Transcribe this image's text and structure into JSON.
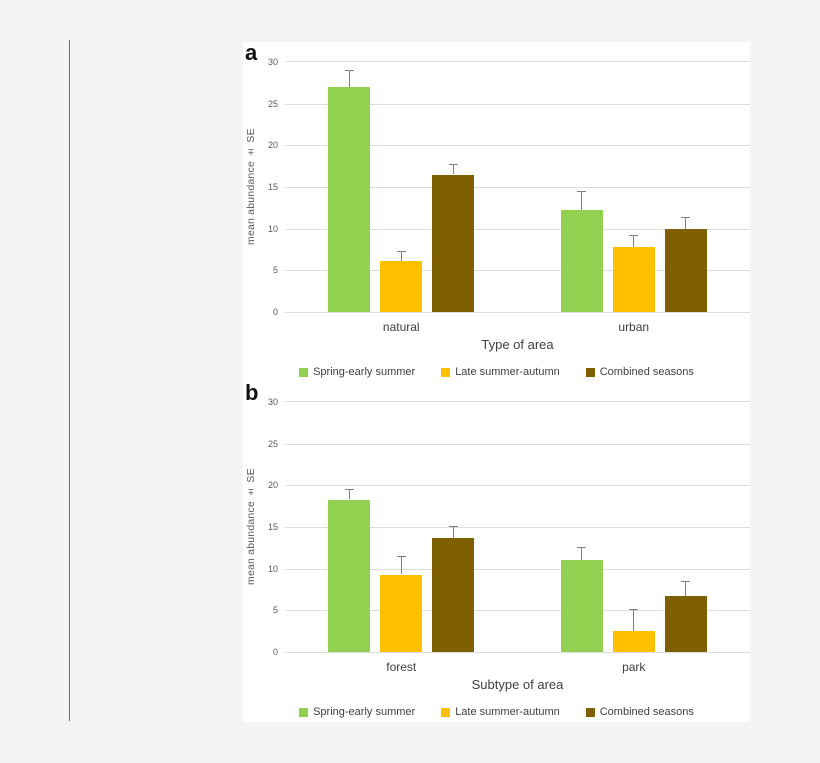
{
  "colors": {
    "page_bg": "#f4f4f4",
    "panel_bg": "#ffffff",
    "divider": "#6e6e6e",
    "gridline": "#dcdcdc",
    "tick_text": "#595959",
    "label_text": "#404040",
    "error_bar": "#808080",
    "panel_label": "#111111"
  },
  "chart_data": [
    {
      "type": "bar",
      "panel_label": "a",
      "xlabel": "Type of area",
      "ylabel": "mean abundance ± SE",
      "ylim": [
        0,
        30
      ],
      "yticks": [
        0,
        5,
        10,
        15,
        20,
        25,
        30
      ],
      "grid": true,
      "legend_position": "bottom",
      "error_bars": true,
      "categories": [
        "natural",
        "urban"
      ],
      "series": [
        {
          "name": "Spring-early summer",
          "color": "#92d050",
          "values": [
            27.0,
            12.2
          ],
          "errors": [
            2.0,
            2.3
          ]
        },
        {
          "name": "Late summer-autumn",
          "color": "#ffc000",
          "values": [
            6.1,
            7.8
          ],
          "errors": [
            1.2,
            1.5
          ]
        },
        {
          "name": "Combined seasons",
          "color": "#7f6000",
          "values": [
            16.5,
            10.0
          ],
          "errors": [
            1.3,
            1.4
          ]
        }
      ]
    },
    {
      "type": "bar",
      "panel_label": "b",
      "xlabel": "Subtype of area",
      "ylabel": "mean abundance ± SE",
      "ylim": [
        0,
        30
      ],
      "yticks": [
        0,
        5,
        10,
        15,
        20,
        25,
        30
      ],
      "grid": true,
      "legend_position": "bottom",
      "error_bars": true,
      "categories": [
        "forest",
        "park"
      ],
      "series": [
        {
          "name": "Spring-early summer",
          "color": "#92d050",
          "values": [
            18.3,
            11.0
          ],
          "errors": [
            1.3,
            1.6
          ]
        },
        {
          "name": "Late summer-autumn",
          "color": "#ffc000",
          "values": [
            9.3,
            2.5
          ],
          "errors": [
            2.2,
            2.7
          ]
        },
        {
          "name": "Combined seasons",
          "color": "#7f6000",
          "values": [
            13.7,
            6.7
          ],
          "errors": [
            1.4,
            1.8
          ]
        }
      ]
    }
  ]
}
